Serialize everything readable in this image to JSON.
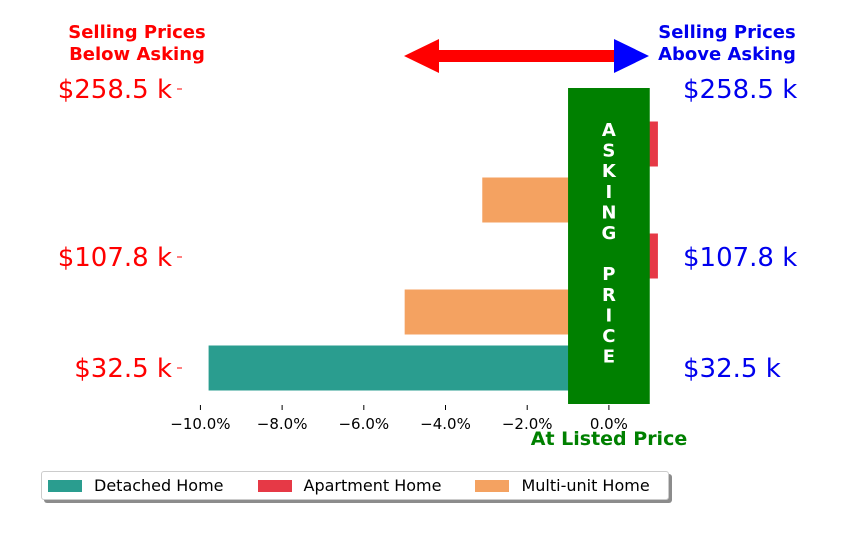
{
  "chart_data": {
    "type": "bar",
    "orientation": "horizontal",
    "categories": [
      "$32.5 k",
      "$107.8 k",
      "$258.5 k"
    ],
    "categories_right": [
      "$32.5 k",
      "$107.8 k",
      "$258.5 k"
    ],
    "series": [
      {
        "name": "Detached Home",
        "color": "#2a9d8f",
        "values": [
          -9.8,
          null,
          null
        ]
      },
      {
        "name": "Apartment Home",
        "color": "#e63946",
        "values": [
          null,
          1.2,
          1.2
        ]
      },
      {
        "name": "Multi-unit Home",
        "color": "#f4a261",
        "values": [
          null,
          -5.0,
          -3.1
        ]
      }
    ],
    "x_ticks": [
      "−10.0%",
      "−8.0%",
      "−6.0%",
      "−4.0%",
      "−2.0%",
      "0.0%"
    ],
    "x_tick_values": [
      -10,
      -8,
      -6,
      -4,
      -2,
      0
    ],
    "xlim": [
      -10.5,
      1.3
    ],
    "left_label_color": "#ff0000",
    "right_label_color": "#0000ee",
    "asking_band": {
      "from": -1.0,
      "to": 1.0,
      "color": "#008000",
      "letters": [
        "A",
        "S",
        "K",
        "I",
        "N",
        "G",
        "",
        "P",
        "R",
        "I",
        "C",
        "E"
      ]
    },
    "annotations": {
      "below": [
        "Selling Prices",
        "Below Asking"
      ],
      "above": [
        "Selling Prices",
        "Above Asking"
      ],
      "at_listed": "At Listed Price"
    },
    "legend_position": "bottom-left",
    "grid": false
  }
}
